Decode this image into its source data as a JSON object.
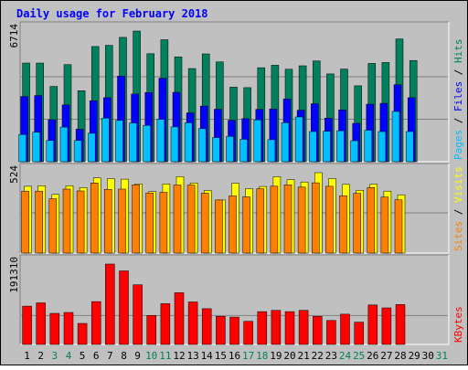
{
  "title": "Daily usage for February 2018",
  "colors": {
    "background": "#c0c0c0",
    "title": "#0000ff",
    "hits": "#00805c",
    "files": "#0000ff",
    "pages": "#00c0ff",
    "visits": "#ffff00",
    "sites": "#ff8000",
    "kbytes": "#ff0000",
    "weekend": "#00805c",
    "weekday": "#000000"
  },
  "chart_data": [
    {
      "type": "bar",
      "categories": [
        "1",
        "2",
        "3",
        "4",
        "5",
        "6",
        "7",
        "8",
        "9",
        "10",
        "11",
        "12",
        "13",
        "14",
        "15",
        "16",
        "17",
        "18",
        "19",
        "20",
        "21",
        "22",
        "23",
        "24",
        "25",
        "26",
        "27",
        "28",
        "29",
        "30",
        "31"
      ],
      "weekend_days": [
        "3",
        "4",
        "10",
        "11",
        "17",
        "18",
        "24",
        "25",
        "31"
      ],
      "ymax_label": "6714",
      "ylim": [
        0,
        6714
      ],
      "ylabel_parts": [
        "Pages",
        "Files",
        "Hits"
      ],
      "series": [
        {
          "name": "Hits",
          "values": [
            5070,
            5070,
            3870,
            4990,
            3650,
            5920,
            5980,
            6390,
            6714,
            5550,
            6270,
            5390,
            4790,
            5540,
            5130,
            3830,
            3810,
            4830,
            4960,
            4750,
            4930,
            5180,
            4510,
            4760,
            3900,
            5050,
            5100,
            6310,
            5200,
            0,
            0
          ]
        },
        {
          "name": "Files",
          "values": [
            3350,
            3400,
            2160,
            2920,
            1670,
            3130,
            3290,
            4400,
            3480,
            3560,
            4290,
            3570,
            2510,
            2860,
            2700,
            2130,
            2210,
            2690,
            2710,
            3220,
            2650,
            2980,
            2240,
            2660,
            1970,
            2960,
            3000,
            3960,
            3290,
            0,
            0
          ]
        },
        {
          "name": "Pages",
          "values": [
            1400,
            1520,
            1090,
            1780,
            1090,
            1460,
            2240,
            2120,
            1990,
            1870,
            2180,
            1790,
            2000,
            1700,
            1240,
            1300,
            1150,
            2150,
            1130,
            2000,
            2300,
            1550,
            1570,
            1590,
            1080,
            1620,
            1550,
            2580,
            1550,
            0,
            0
          ]
        }
      ]
    },
    {
      "type": "bar",
      "categories": [
        "1",
        "2",
        "3",
        "4",
        "5",
        "6",
        "7",
        "8",
        "9",
        "10",
        "11",
        "12",
        "13",
        "14",
        "15",
        "16",
        "17",
        "18",
        "19",
        "20",
        "21",
        "22",
        "23",
        "24",
        "25",
        "26",
        "27",
        "28",
        "29",
        "30",
        "31"
      ],
      "ymax_label": "524",
      "ylim": [
        0,
        524
      ],
      "ylabel_parts": [
        "Sites",
        "Visits"
      ],
      "series": [
        {
          "name": "Visits",
          "values": [
            435,
            439,
            382,
            439,
            427,
            490,
            485,
            482,
            451,
            401,
            451,
            498,
            456,
            408,
            346,
            455,
            420,
            434,
            497,
            479,
            463,
            524,
            485,
            448,
            409,
            449,
            404,
            380,
            0,
            0,
            0
          ]
        },
        {
          "name": "Sites",
          "values": [
            404,
            404,
            354,
            417,
            405,
            457,
            415,
            417,
            445,
            392,
            396,
            444,
            443,
            390,
            346,
            373,
            367,
            419,
            436,
            445,
            430,
            458,
            435,
            374,
            389,
            427,
            365,
            347,
            0,
            0,
            0
          ]
        }
      ]
    },
    {
      "type": "bar",
      "categories": [
        "1",
        "2",
        "3",
        "4",
        "5",
        "6",
        "7",
        "8",
        "9",
        "10",
        "11",
        "12",
        "13",
        "14",
        "15",
        "16",
        "17",
        "18",
        "19",
        "20",
        "21",
        "22",
        "23",
        "24",
        "25",
        "26",
        "27",
        "28",
        "29",
        "30",
        "31"
      ],
      "ymax_label": "191310",
      "ylim": [
        0,
        191310
      ],
      "ylabel_parts": [
        "KBytes"
      ],
      "series": [
        {
          "name": "KBytes",
          "values": [
            91000,
            99000,
            74000,
            76000,
            50000,
            102000,
            191310,
            175000,
            142000,
            69000,
            97000,
            123000,
            101000,
            85000,
            67000,
            65000,
            55000,
            78000,
            81000,
            78000,
            81000,
            67000,
            57000,
            72000,
            53000,
            94000,
            87000,
            95000,
            0,
            0,
            0
          ]
        }
      ]
    }
  ]
}
